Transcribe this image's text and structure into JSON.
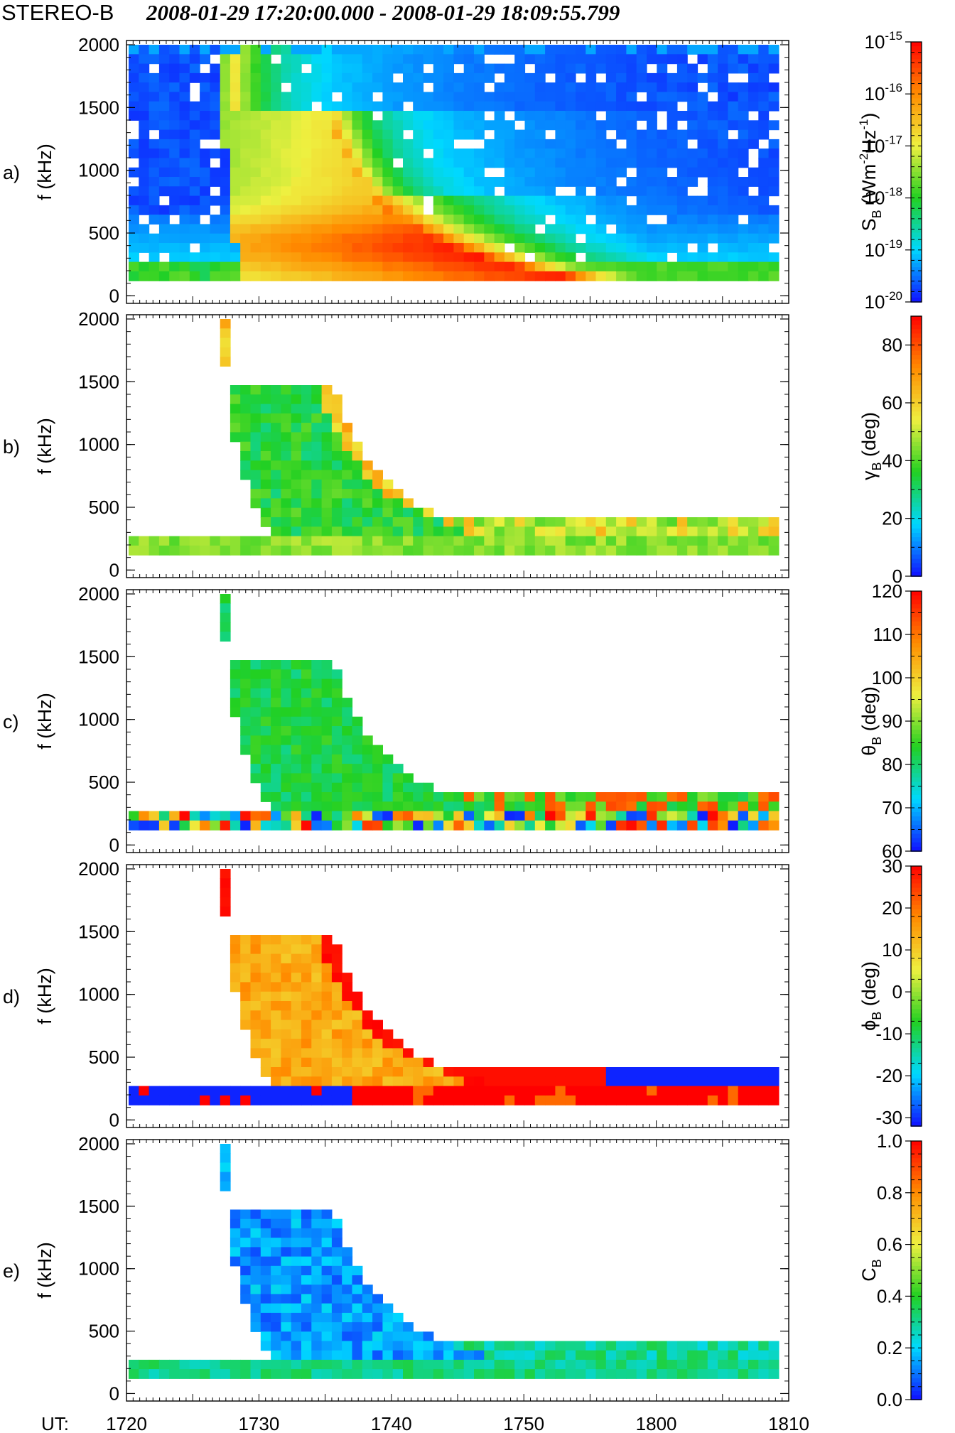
{
  "title": {
    "spacecraft": "STEREO-B",
    "time_range": "2008-01-29 17:20:00.000 - 2008-01-29 18:09:55.799"
  },
  "x_axis": {
    "prefix": "UT:",
    "ticks": [
      "1720",
      "1730",
      "1740",
      "1750",
      "1800",
      "1810"
    ],
    "range_minutes": [
      0,
      50
    ]
  },
  "colors": {
    "missing": "#ffffff",
    "colormap": [
      "#1010ff",
      "#00d8ff",
      "#22d022",
      "#eef040",
      "#ff8c00",
      "#ff0000"
    ]
  },
  "chart_data": [
    {
      "type": "heatmap",
      "panel": "a)",
      "quantity": "Spectral flux density",
      "ylabel": "f (kHz)",
      "ylim": [
        0,
        2000
      ],
      "yticks": [
        "0",
        "500",
        "1000",
        "1500",
        "2000"
      ],
      "colorbar": {
        "label": "SB (Wm-2Hz-1)",
        "scale": "log",
        "range": [
          -20,
          -15
        ],
        "ticks": [
          {
            "v": -15,
            "mant": "10",
            "exp": "-15"
          },
          {
            "v": -16,
            "mant": "10",
            "exp": "-16"
          },
          {
            "v": -17,
            "mant": "10",
            "exp": "-17"
          },
          {
            "v": -18,
            "mant": "10",
            "exp": "-18"
          },
          {
            "v": -19,
            "mant": "10",
            "exp": "-19"
          },
          {
            "v": -20,
            "mant": "10",
            "exp": "-20"
          }
        ]
      },
      "description": "Type III radio burst drifting from ~2000 kHz near 17:27 UT to ~200 kHz by ~17:45 UT; background ~1e-20 elsewhere"
    },
    {
      "type": "heatmap",
      "panel": "b)",
      "quantity": "Polarization angle gamma",
      "ylabel": "f (kHz)",
      "ylim": [
        0,
        2000
      ],
      "yticks": [
        "0",
        "500",
        "1000",
        "1500",
        "2000"
      ],
      "colorbar": {
        "label": "γB (deg)",
        "scale": "linear",
        "range": [
          0,
          90
        ],
        "ticks": [
          {
            "v": 0,
            "t": "0"
          },
          {
            "v": 20,
            "t": "20"
          },
          {
            "v": 40,
            "t": "40"
          },
          {
            "v": 60,
            "t": "60"
          },
          {
            "v": 80,
            "t": "80"
          }
        ]
      },
      "description": "Values ~30-45 deg inside burst, ~60-70 deg at trailing edge and low-frequency tail"
    },
    {
      "type": "heatmap",
      "panel": "c)",
      "quantity": "Colatitude theta",
      "ylabel": "f (kHz)",
      "ylim": [
        0,
        2000
      ],
      "yticks": [
        "0",
        "500",
        "1000",
        "1500",
        "2000"
      ],
      "colorbar": {
        "label": "θB (deg)",
        "scale": "linear",
        "range": [
          60,
          120
        ],
        "ticks": [
          {
            "v": 60,
            "t": "60"
          },
          {
            "v": 70,
            "t": "70"
          },
          {
            "v": 80,
            "t": "80"
          },
          {
            "v": 90,
            "t": "90"
          },
          {
            "v": 100,
            "t": "100"
          },
          {
            "v": 110,
            "t": "110"
          },
          {
            "v": 120,
            "t": "120"
          }
        ]
      },
      "description": "Values ~80-85 deg inside burst; noisy 60-120 deg in lowest-frequency channels"
    },
    {
      "type": "heatmap",
      "panel": "d)",
      "quantity": "Azimuth phi",
      "ylabel": "f (kHz)",
      "ylim": [
        0,
        2000
      ],
      "yticks": [
        "0",
        "500",
        "1000",
        "1500",
        "2000"
      ],
      "colorbar": {
        "label": "ϕB (deg)",
        "scale": "linear",
        "range": [
          -32,
          30
        ],
        "ticks": [
          {
            "v": 30,
            "t": "30"
          },
          {
            "v": 20,
            "t": "20"
          },
          {
            "v": 10,
            "t": "10"
          },
          {
            "v": 0,
            "t": "0"
          },
          {
            "v": -10,
            "t": "-10"
          },
          {
            "v": -20,
            "t": "-20"
          },
          {
            "v": -30,
            "t": "-30"
          }
        ]
      },
      "description": "Values ~10-15 deg inside burst, ~30 deg at trailing edge; -30 deg at lowest frequencies early"
    },
    {
      "type": "heatmap",
      "panel": "e)",
      "quantity": "Coherence C",
      "ylabel": "f (kHz)",
      "ylim": [
        0,
        2000
      ],
      "yticks": [
        "0",
        "500",
        "1000",
        "1500",
        "2000"
      ],
      "colorbar": {
        "label": "CB",
        "scale": "linear",
        "range": [
          0,
          1
        ],
        "ticks": [
          {
            "v": 0.0,
            "t": "0.0"
          },
          {
            "v": 0.2,
            "t": "0.2"
          },
          {
            "v": 0.4,
            "t": "0.4"
          },
          {
            "v": 0.6,
            "t": "0.6"
          },
          {
            "v": 0.8,
            "t": "0.8"
          },
          {
            "v": 1.0,
            "t": "1.0"
          }
        ]
      },
      "description": "Values ~0.1-0.2 inside burst; ~0.3 in low-frequency tail"
    }
  ]
}
